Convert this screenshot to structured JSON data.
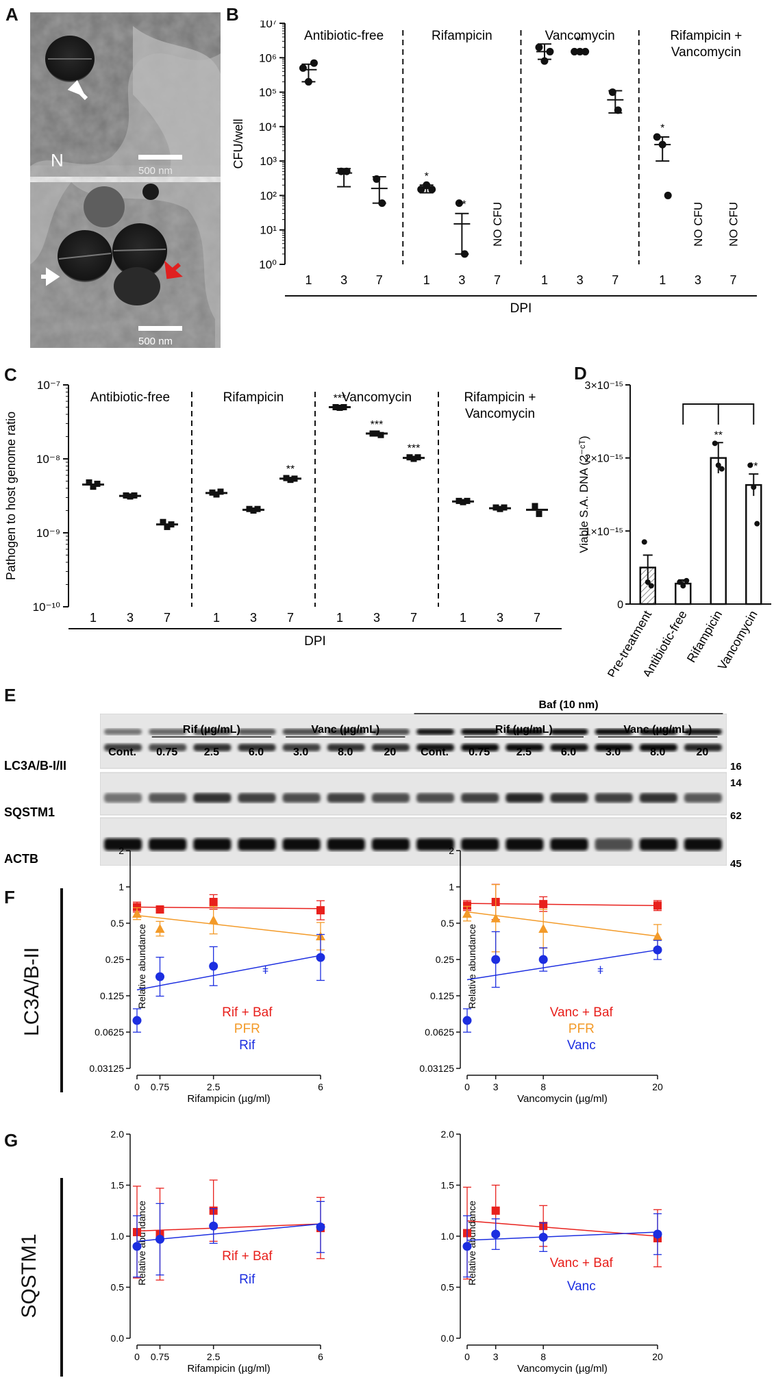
{
  "panels": {
    "A": {
      "label": "A",
      "scale_top": "500 nm",
      "scale_bottom": "500 nm",
      "nucleus_label": "N",
      "arrow_colors": [
        "#ffffff",
        "#ffffff",
        "#e02020"
      ]
    },
    "B": {
      "label": "B"
    },
    "C": {
      "label": "C"
    },
    "D": {
      "label": "D"
    },
    "E": {
      "label": "E"
    },
    "F": {
      "label": "F",
      "side_label": "LC3A/B-II"
    },
    "G": {
      "label": "G",
      "side_label": "SQSTM1"
    }
  },
  "blot": {
    "header_baf": "Baf (10 nm)",
    "groups": [
      "Rif (µg/mL)",
      "Vanc (µg/mL)",
      "Rif (µg/mL)",
      "Vanc (µg/mL)"
    ],
    "lanes": [
      "Cont.",
      "0.75",
      "2.5",
      "6.0",
      "3.0",
      "8.0",
      "20",
      "Cont.",
      "0.75",
      "2.5",
      "6.0",
      "3.0",
      "8.0",
      "20"
    ],
    "rows": [
      {
        "name": "LC3A/B-I/II",
        "kda": [
          "16",
          "14"
        ]
      },
      {
        "name": "SQSTM1",
        "kda": [
          "62"
        ]
      },
      {
        "name": "ACTB",
        "kda": [
          "45"
        ]
      }
    ]
  },
  "chart_data": [
    {
      "id": "B",
      "type": "scatter",
      "scale": "log",
      "ylabel": "CFU/well",
      "xlabel": "DPI",
      "ylim": [
        1,
        10000000
      ],
      "y_tick_labels": [
        "10⁰",
        "10¹",
        "10²",
        "10³",
        "10⁴",
        "10⁵",
        "10⁶",
        "10⁷"
      ],
      "groups": [
        {
          "name": "Antibiotic-free",
          "days": [
            {
              "x": "1",
              "points": [
                500000,
                200000,
                700000
              ],
              "mean": 450000,
              "err": [
                200000,
                650000
              ],
              "sig": ""
            },
            {
              "x": "3",
              "points": [
                500,
                500
              ],
              "mean": 450,
              "err": [
                180,
                600
              ],
              "sig": ""
            },
            {
              "x": "7",
              "points": [
                300,
                60
              ],
              "mean": 160,
              "err": [
                60,
                350
              ],
              "sig": ""
            }
          ]
        },
        {
          "name": "Rifampicin",
          "days": [
            {
              "x": "1",
              "points": [
                150,
                200,
                150
              ],
              "mean": 160,
              "err": [
                120,
                200
              ],
              "sig": "*"
            },
            {
              "x": "3",
              "points": [
                60,
                2
              ],
              "mean": 15,
              "err": [
                2,
                30
              ],
              "sig": "**"
            },
            {
              "x": "7",
              "points": [],
              "note": "NO CFU"
            }
          ]
        },
        {
          "name": "Vancomycin",
          "days": [
            {
              "x": "1",
              "points": [
                2000000,
                800000,
                1500000
              ],
              "mean": 1500000,
              "err": [
                900000,
                2500000
              ],
              "sig": ""
            },
            {
              "x": "3",
              "points": [
                1500000,
                1500000,
                1500000
              ],
              "mean": 1500000,
              "err": [
                1400000,
                1700000
              ],
              "sig": "**"
            },
            {
              "x": "7",
              "points": [
                100000,
                30000
              ],
              "mean": 60000,
              "err": [
                25000,
                110000
              ],
              "sig": ""
            }
          ]
        },
        {
          "name": "Rifampicin + Vancomycin",
          "days": [
            {
              "x": "1",
              "points": [
                5000,
                3000,
                100
              ],
              "mean": 3000,
              "err": [
                1000,
                5000
              ],
              "sig": "*"
            },
            {
              "x": "3",
              "points": [],
              "note": "NO CFU"
            },
            {
              "x": "7",
              "points": [],
              "note": "NO CFU"
            }
          ]
        }
      ]
    },
    {
      "id": "C",
      "type": "scatter",
      "scale": "log",
      "ylabel": "Pathogen to host genome ratio",
      "xlabel": "DPI",
      "ylim": [
        1e-10,
        1e-07
      ],
      "y_tick_labels": [
        "10⁻¹⁰",
        "10⁻⁹",
        "10⁻⁸",
        "10⁻⁷"
      ],
      "groups": [
        {
          "name": "Antibiotic-free",
          "days": [
            {
              "x": "1",
              "points": [
                4.8e-09,
                4.2e-09,
                4.6e-09
              ],
              "mean": 4.5e-09,
              "sig": ""
            },
            {
              "x": "3",
              "points": [
                3.2e-09,
                3.1e-09,
                3.2e-09
              ],
              "mean": 3.15e-09,
              "sig": ""
            },
            {
              "x": "7",
              "points": [
                1.4e-09,
                1.2e-09,
                1.3e-09
              ],
              "mean": 1.3e-09,
              "sig": ""
            }
          ]
        },
        {
          "name": "Rifampicin",
          "days": [
            {
              "x": "1",
              "points": [
                3.5e-09,
                3.3e-09,
                3.6e-09
              ],
              "mean": 3.45e-09,
              "sig": ""
            },
            {
              "x": "3",
              "points": [
                2.1e-09,
                2e-09,
                2.1e-09
              ],
              "mean": 2.05e-09,
              "sig": ""
            },
            {
              "x": "7",
              "points": [
                5.5e-09,
                5.2e-09,
                5.4e-09
              ],
              "mean": 5.4e-09,
              "sig": "**"
            }
          ]
        },
        {
          "name": "Vancomycin",
          "days": [
            {
              "x": "1",
              "points": [
                5e-08,
                4.9e-08,
                5e-08
              ],
              "mean": 5e-08,
              "sig": "***"
            },
            {
              "x": "3",
              "points": [
                2.2e-08,
                2.2e-08,
                2.1e-08
              ],
              "mean": 2.2e-08,
              "sig": "***"
            },
            {
              "x": "7",
              "points": [
                1.05e-08,
                1e-08,
                1.05e-08
              ],
              "mean": 1.03e-08,
              "sig": "***"
            }
          ]
        },
        {
          "name": "Rifampicin + Vancomycin",
          "days": [
            {
              "x": "1",
              "points": [
                2.7e-09,
                2.6e-09,
                2.7e-09
              ],
              "mean": 2.65e-09,
              "sig": ""
            },
            {
              "x": "3",
              "points": [
                2.2e-09,
                2.1e-09,
                2.2e-09
              ],
              "mean": 2.15e-09,
              "sig": ""
            },
            {
              "x": "7",
              "points": [
                2.3e-09,
                1.8e-09
              ],
              "mean": 2.05e-09,
              "sig": ""
            }
          ]
        }
      ]
    },
    {
      "id": "D",
      "type": "bar",
      "ylabel": "Viable S.A. DNA (2⁻ᶜᵀ)",
      "ylim": [
        0,
        3e-15
      ],
      "y_tick_labels": [
        "0",
        "1×10⁻¹⁵",
        "2×10⁻¹⁵",
        "3×10⁻¹⁵"
      ],
      "categories": [
        "Pre-treatment",
        "Antibiotic-free",
        "Rifampicin",
        "Vancomycin"
      ],
      "values": [
        5e-16,
        2.8e-16,
        2e-15,
        1.63e-15
      ],
      "errors": [
        1.7e-16,
        5e-17,
        2.1e-16,
        1.5e-16
      ],
      "points": [
        [
          8.5e-16,
          3e-16,
          2.5e-16
        ],
        [
          3e-16,
          2.5e-16,
          3.2e-16
        ],
        [
          2.2e-15,
          1.9e-15,
          1.85e-15
        ],
        [
          1.9e-15,
          1.6e-15,
          1.1e-15
        ]
      ],
      "sig": [
        "",
        "",
        "**",
        "**"
      ]
    },
    {
      "id": "F-left",
      "type": "line",
      "scale": "log2",
      "ylabel": "Relative abundance",
      "xlabel": "Rifampicin (µg/ml)",
      "ylim": [
        0.03125,
        2
      ],
      "y_tick_labels": [
        "0.03125",
        "0.0625",
        "0.125",
        "0.25",
        "0.5",
        "1",
        "2"
      ],
      "x_tick_labels": [
        "0",
        "0.75",
        "2.5",
        "6"
      ],
      "x": [
        0,
        0.75,
        2.5,
        6
      ],
      "xlim": [
        0,
        6
      ],
      "annotation": "ǂ",
      "series": [
        {
          "name": "Rif + Baf",
          "color": "#e8201c",
          "marker": "square",
          "values": [
            0.68,
            0.65,
            0.75,
            0.64
          ],
          "fit": [
            0.68,
            0.66
          ]
        },
        {
          "name": "PFR",
          "color": "#f39a28",
          "marker": "triangle",
          "values": [
            0.6,
            0.45,
            0.53,
            0.39
          ],
          "fit": [
            0.58,
            0.39
          ]
        },
        {
          "name": "Rif",
          "color": "#1c2ee0",
          "marker": "circle",
          "values": [
            0.078,
            0.18,
            0.22,
            0.26
          ],
          "fit": [
            0.14,
            0.27
          ]
        }
      ]
    },
    {
      "id": "F-right",
      "type": "line",
      "scale": "log2",
      "ylabel": "Relative abundance",
      "xlabel": "Vancomycin (µg/ml)",
      "ylim": [
        0.03125,
        2
      ],
      "y_tick_labels": [
        "0.03125",
        "0.0625",
        "0.125",
        "0.25",
        "0.5",
        "1",
        "2"
      ],
      "x_tick_labels": [
        "0",
        "3",
        "8",
        "20"
      ],
      "x": [
        0,
        3,
        8,
        20
      ],
      "xlim": [
        0,
        20
      ],
      "annotation": "ǂ",
      "series": [
        {
          "name": "Vanc + Baf",
          "color": "#e8201c",
          "marker": "square",
          "values": [
            0.7,
            0.75,
            0.72,
            0.7
          ],
          "fit": [
            0.73,
            0.7
          ]
        },
        {
          "name": "PFR",
          "color": "#f39a28",
          "marker": "triangle",
          "values": [
            0.6,
            0.55,
            0.45,
            0.39
          ],
          "fit": [
            0.62,
            0.39
          ]
        },
        {
          "name": "Vanc",
          "color": "#1c2ee0",
          "marker": "circle",
          "values": [
            0.078,
            0.25,
            0.25,
            0.3
          ],
          "fit": [
            0.17,
            0.3
          ]
        }
      ]
    },
    {
      "id": "G-left",
      "type": "line",
      "ylabel": "Relative abundance",
      "xlabel": "Rifampicin (µg/ml)",
      "ylim": [
        0,
        2
      ],
      "y_tick_labels": [
        "0.0",
        "0.5",
        "1.0",
        "1.5",
        "2.0"
      ],
      "x_tick_labels": [
        "0",
        "0.75",
        "2.5",
        "6"
      ],
      "x": [
        0,
        0.75,
        2.5,
        6
      ],
      "xlim": [
        0,
        6
      ],
      "series": [
        {
          "name": "Rif + Baf",
          "color": "#e8201c",
          "marker": "square",
          "values": [
            1.04,
            1.02,
            1.25,
            1.08
          ],
          "fit": [
            1.05,
            1.12
          ]
        },
        {
          "name": "Rif",
          "color": "#1c2ee0",
          "marker": "circle",
          "values": [
            0.9,
            0.97,
            1.1,
            1.09
          ],
          "fit": [
            0.95,
            1.12
          ]
        }
      ]
    },
    {
      "id": "G-right",
      "type": "line",
      "ylabel": "Relative abundance",
      "xlabel": "Vancomycin (µg/ml)",
      "ylim": [
        0,
        2
      ],
      "y_tick_labels": [
        "0.0",
        "0.5",
        "1.0",
        "1.5",
        "2.0"
      ],
      "x_tick_labels": [
        "0",
        "3",
        "8",
        "20"
      ],
      "x": [
        0,
        3,
        8,
        20
      ],
      "xlim": [
        0,
        20
      ],
      "series": [
        {
          "name": "Vanc + Baf",
          "color": "#e8201c",
          "marker": "square",
          "values": [
            1.03,
            1.25,
            1.1,
            0.98
          ],
          "fit": [
            1.15,
            1.0
          ]
        },
        {
          "name": "Vanc",
          "color": "#1c2ee0",
          "marker": "circle",
          "values": [
            0.9,
            1.02,
            0.99,
            1.02
          ],
          "fit": [
            0.96,
            1.04
          ]
        }
      ]
    }
  ]
}
